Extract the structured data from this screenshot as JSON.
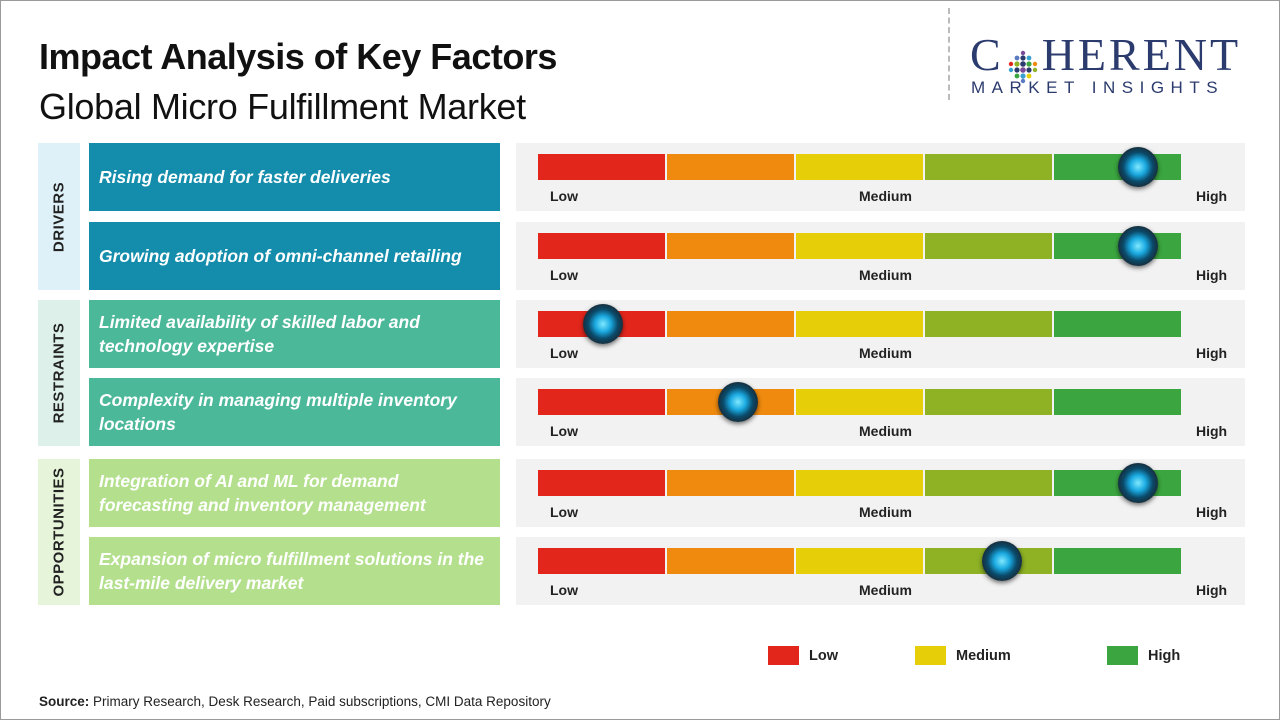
{
  "header": {
    "title": "Impact Analysis of Key Factors",
    "subtitle": "Global Micro Fulfillment Market"
  },
  "logo": {
    "top_text_1": "C",
    "top_text_2": "HERENT",
    "bottom_text": "MARKET INSIGHTS",
    "icon": "dot-grid-logo-icon"
  },
  "chart_data": {
    "type": "table",
    "scale_labels": {
      "low": "Low",
      "medium": "Medium",
      "high": "High"
    },
    "segment_colors": [
      "#e3261c",
      "#ef8a0f",
      "#e6cf08",
      "#8eb224",
      "#3ba640"
    ],
    "value_range": [
      0,
      1
    ],
    "groups": [
      {
        "name": "DRIVERS",
        "color": "#138dab",
        "factors": [
          {
            "label": "Rising demand for faster deliveries",
            "impact": 0.93
          },
          {
            "label": "Growing adoption of omni-channel retailing",
            "impact": 0.93
          }
        ]
      },
      {
        "name": "RESTRAINTS",
        "color": "#4cb89a",
        "factors": [
          {
            "label": "Limited availability of skilled labor and technology expertise",
            "impact": 0.1
          },
          {
            "label": "Complexity in managing multiple inventory locations",
            "impact": 0.31
          }
        ]
      },
      {
        "name": "OPPORTUNITIES",
        "color": "#b4e08e",
        "factors": [
          {
            "label": "Integration of AI and ML for demand forecasting and inventory management",
            "impact": 0.93
          },
          {
            "label": "Expansion of micro fulfillment solutions in the last-mile delivery market",
            "impact": 0.72
          }
        ]
      }
    ],
    "legend": [
      {
        "label": "Low",
        "color": "#e3261c"
      },
      {
        "label": "Medium",
        "color": "#e6cf08"
      },
      {
        "label": "High",
        "color": "#3ba640"
      }
    ]
  },
  "source": {
    "label": "Source:",
    "text": "Primary Research, Desk Research, Paid subscriptions, CMI Data Repository"
  }
}
